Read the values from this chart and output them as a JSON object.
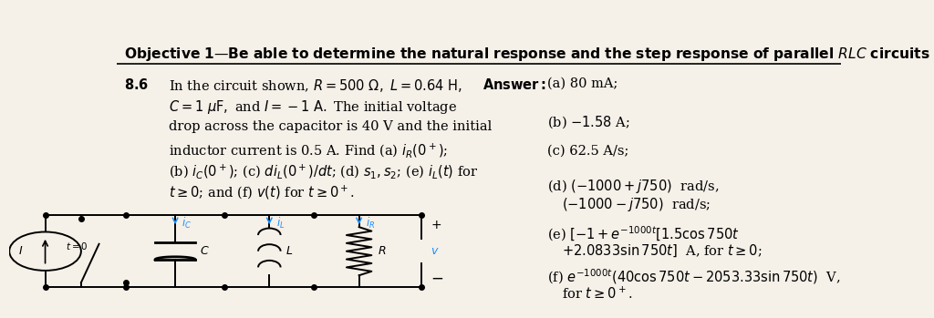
{
  "background_color": "#f5f0e8",
  "title": "Objective 1—Be able to determine the natural response and the step response of parallel \\textit{RLC} circuits",
  "title_fontsize": 11.5,
  "problem_number": "8.6",
  "problem_text_parts": [
    "In the circuit shown, $R = 500\\,\\Omega,\\, L = 0.64\\,\\text{H},$",
    "$C = 1\\,\\mu\\text{F},$ and $I = -1\\,\\text{A}.$ The initial voltage",
    "drop across the capacitor is 40 V and the initial",
    "inductor current is 0.5 A. Find (a) $i_R(0^+)$;",
    "(b) $i_C(0^+)$; (c) $di_L(0^+)/dt$; (d) $s_1, s_2$; (e) $i_L(t)$ for",
    "$t \\geq 0$; and (f) $v(t)$ for $t \\geq 0^+$."
  ],
  "answer_label": "Answer:",
  "answer_parts": [
    "(a) 80 mA;",
    "(b) −1.58 A;",
    "(c) 62.5 A/s;",
    "(d) $(-1000 + j750)\\,$ rad/s,\n    $(-1000 - j750)\\,$ rad/s;",
    "(e) $[-1 + e^{-1000t}[1.5\\cos 750t$\n    $+ 2.0833\\sin 750t]\\,$ A, for $t \\geq 0$;",
    "(f) $e^{-1000t}(40\\cos 750t - 2053.33\\sin 750t)\\,$ V,\n    for $t \\geq 0^+$."
  ],
  "font_size_problem": 10.5,
  "font_size_answer": 10.5
}
